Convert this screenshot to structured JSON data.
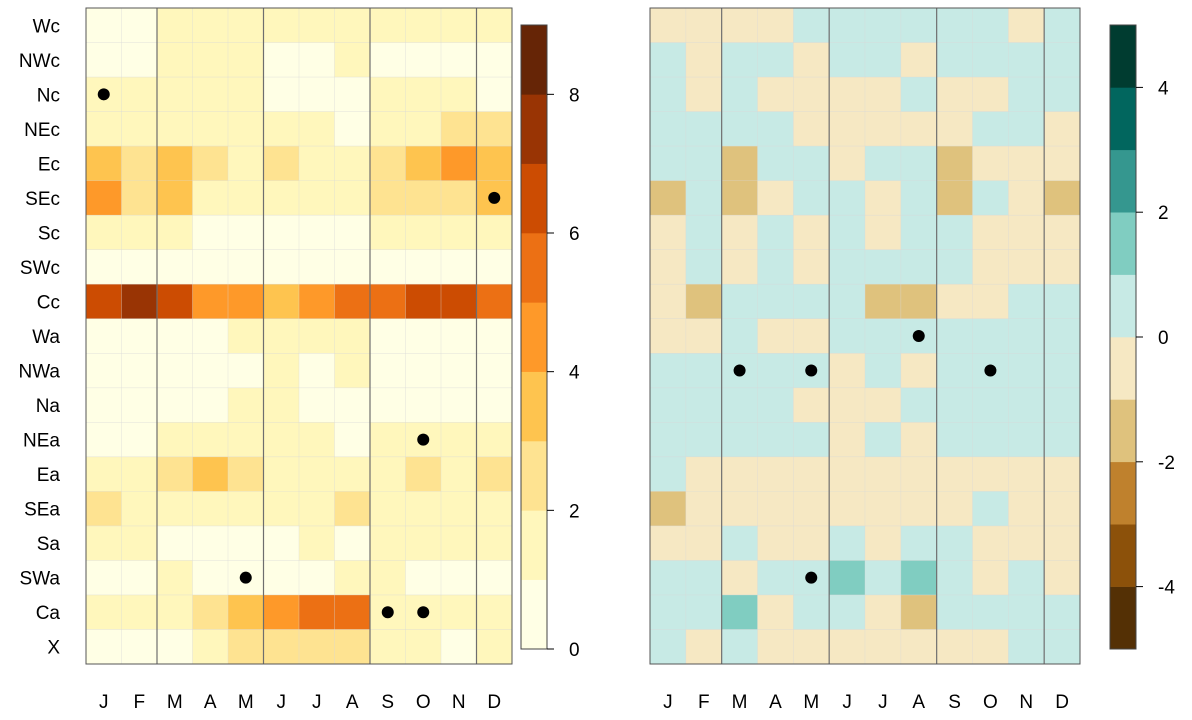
{
  "chart_data": [
    {
      "type": "heatmap",
      "title": "",
      "xlabel": "",
      "ylabel": "",
      "categories": [
        "J",
        "F",
        "M",
        "A",
        "M",
        "J",
        "J",
        "A",
        "S",
        "O",
        "N",
        "D"
      ],
      "rows": [
        "Wc",
        "NWc",
        "Nc",
        "NEc",
        "Ec",
        "SEc",
        "Sc",
        "SWc",
        "Cc",
        "Wa",
        "NWa",
        "Na",
        "NEa",
        "Ea",
        "SEa",
        "Sa",
        "SWa",
        "Ca",
        "X"
      ],
      "values": [
        [
          0.8,
          0.8,
          1.1,
          1.1,
          1.1,
          1.0,
          1.1,
          1.1,
          1.1,
          1.0,
          1.0,
          1.1
        ],
        [
          0.6,
          0.6,
          1.3,
          1.3,
          1.3,
          0.8,
          0.6,
          1.4,
          0.6,
          0.6,
          0.6,
          0.6
        ],
        [
          1.0,
          1.3,
          1.3,
          1.3,
          1.3,
          0.8,
          0.6,
          0.5,
          1.1,
          1.1,
          1.1,
          0.6
        ],
        [
          1.4,
          1.4,
          1.3,
          1.3,
          1.3,
          1.3,
          1.3,
          0.5,
          1.3,
          1.3,
          2.5,
          2.5
        ],
        [
          3.5,
          2.5,
          3.5,
          2.5,
          1.3,
          2.5,
          1.3,
          1.3,
          2.0,
          3.5,
          4.5,
          3.5
        ],
        [
          4.5,
          2.0,
          3.5,
          1.3,
          1.3,
          1.3,
          1.3,
          1.3,
          2.0,
          2.0,
          2.0,
          3.5
        ],
        [
          1.3,
          1.3,
          1.3,
          0.8,
          0.8,
          0.8,
          0.8,
          0.8,
          1.1,
          1.1,
          1.1,
          1.3
        ],
        [
          0.6,
          0.6,
          0.6,
          0.6,
          0.6,
          0.6,
          0.6,
          0.6,
          0.6,
          0.6,
          0.6,
          0.6
        ],
        [
          6.5,
          7.5,
          6.5,
          4.5,
          4.5,
          3.5,
          4.5,
          5.5,
          5.5,
          6.5,
          6.5,
          5.5
        ],
        [
          0.6,
          0.6,
          0.6,
          0.6,
          1.3,
          1.3,
          1.3,
          1.3,
          0.8,
          0.6,
          0.6,
          0.6
        ],
        [
          0.6,
          0.6,
          0.6,
          0.6,
          0.5,
          1.3,
          0.6,
          1.3,
          0.6,
          0.6,
          0.6,
          0.6
        ],
        [
          0.6,
          0.6,
          0.6,
          0.6,
          1.3,
          1.3,
          0.6,
          0.6,
          0.6,
          0.6,
          0.6,
          0.6
        ],
        [
          0.6,
          0.6,
          1.3,
          1.3,
          1.3,
          1.3,
          1.3,
          0.6,
          1.3,
          1.3,
          1.3,
          1.3
        ],
        [
          1.3,
          1.3,
          2.0,
          3.5,
          2.0,
          1.3,
          1.3,
          1.3,
          1.3,
          2.0,
          1.3,
          2.0
        ],
        [
          2.0,
          1.3,
          1.3,
          1.3,
          1.3,
          1.3,
          1.3,
          2.0,
          1.3,
          1.3,
          1.3,
          1.3
        ],
        [
          1.3,
          1.3,
          0.6,
          0.6,
          0.6,
          0.6,
          1.3,
          0.6,
          1.3,
          1.3,
          1.3,
          1.3
        ],
        [
          0.6,
          0.6,
          1.3,
          0.6,
          0.8,
          0.6,
          0.6,
          1.3,
          1.3,
          0.6,
          0.6,
          0.6
        ],
        [
          1.3,
          1.3,
          1.3,
          2.5,
          3.5,
          4.5,
          5.5,
          5.5,
          1.3,
          1.3,
          1.3,
          1.3
        ],
        [
          0.8,
          0.8,
          0.6,
          1.3,
          2.5,
          2.0,
          2.5,
          2.5,
          1.3,
          1.3,
          0.6,
          1.3
        ]
      ],
      "dots": [
        {
          "row": "Nc",
          "col": 0
        },
        {
          "row": "SEc",
          "col": 11
        },
        {
          "row": "NEa",
          "col": 9
        },
        {
          "row": "SWa",
          "col": 4
        },
        {
          "row": "Ca",
          "col": 8
        },
        {
          "row": "Ca",
          "col": 9
        }
      ],
      "colorbar": {
        "range": [
          0,
          9
        ],
        "ticks": [
          0,
          2,
          4,
          6,
          8
        ],
        "colors": [
          "#FFFFE5",
          "#FFF7BC",
          "#FEE391",
          "#FEC44F",
          "#FE9929",
          "#EC7014",
          "#CC4C02",
          "#993404",
          "#662506"
        ]
      }
    },
    {
      "type": "heatmap",
      "title": "",
      "xlabel": "",
      "ylabel": "",
      "categories": [
        "J",
        "F",
        "M",
        "A",
        "M",
        "J",
        "J",
        "A",
        "S",
        "O",
        "N",
        "D"
      ],
      "rows": [
        "Wc",
        "NWc",
        "Nc",
        "NEc",
        "Ec",
        "SEc",
        "Sc",
        "SWc",
        "Cc",
        "Wa",
        "NWa",
        "Na",
        "NEa",
        "Ea",
        "SEa",
        "Sa",
        "SWa",
        "Ca",
        "X"
      ],
      "values": [
        [
          -0.5,
          -0.5,
          -0.5,
          -0.5,
          0.5,
          0.5,
          0.5,
          0.5,
          0.5,
          0.5,
          -0.5,
          0.5
        ],
        [
          0.5,
          -0.5,
          0.5,
          0.5,
          -0.5,
          0.5,
          0.5,
          -0.5,
          0.5,
          0.5,
          0.5,
          0.5
        ],
        [
          0.5,
          -0.5,
          0.5,
          -0.5,
          -0.5,
          -0.5,
          -0.5,
          0.5,
          -0.5,
          -0.5,
          0.5,
          0.5
        ],
        [
          0.5,
          0.5,
          0.5,
          0.5,
          -0.5,
          -0.5,
          -0.5,
          -0.5,
          -0.5,
          0.5,
          0.5,
          -0.5
        ],
        [
          0.5,
          0.5,
          -1.5,
          0.5,
          0.5,
          -0.5,
          0.5,
          0.5,
          -1.5,
          -0.5,
          -0.5,
          -0.5
        ],
        [
          -1.5,
          0.5,
          -1.5,
          -0.5,
          0.5,
          0.5,
          -0.5,
          0.5,
          -1.5,
          0.5,
          -0.5,
          -1.5
        ],
        [
          -0.5,
          0.5,
          -0.5,
          0.5,
          -0.5,
          0.5,
          -0.5,
          0.5,
          0.5,
          -0.5,
          -0.5,
          -0.5
        ],
        [
          -0.5,
          0.5,
          -0.5,
          0.5,
          -0.5,
          0.5,
          0.5,
          0.5,
          0.5,
          -0.5,
          -0.5,
          -0.5
        ],
        [
          -0.5,
          -1.5,
          0.5,
          0.5,
          0.5,
          0.5,
          -1.5,
          -1.5,
          -0.5,
          -0.5,
          0.5,
          0.5
        ],
        [
          -0.5,
          -0.5,
          0.5,
          -0.5,
          -0.5,
          0.5,
          0.5,
          0.5,
          0.5,
          0.5,
          0.5,
          0.5
        ],
        [
          0.5,
          0.5,
          0.5,
          0.5,
          0.5,
          -0.5,
          0.5,
          -0.5,
          0.5,
          0.5,
          0.5,
          0.5
        ],
        [
          0.5,
          0.5,
          0.5,
          0.5,
          -0.5,
          -0.5,
          -0.5,
          0.5,
          0.5,
          0.5,
          0.5,
          0.5
        ],
        [
          0.5,
          0.5,
          0.5,
          0.5,
          0.5,
          -0.5,
          0.5,
          -0.5,
          0.5,
          0.5,
          0.5,
          0.5
        ],
        [
          0.5,
          -0.5,
          -0.5,
          -0.5,
          -0.5,
          -0.5,
          -0.5,
          -0.5,
          -0.5,
          -0.5,
          -0.5,
          -0.5
        ],
        [
          -1.5,
          -0.5,
          -0.5,
          -0.5,
          -0.5,
          -0.5,
          -0.5,
          -0.5,
          -0.5,
          0.5,
          -0.5,
          -0.5
        ],
        [
          -0.5,
          -0.5,
          0.5,
          -0.5,
          -0.5,
          0.5,
          -0.5,
          0.5,
          0.5,
          -0.5,
          -0.5,
          -0.5
        ],
        [
          0.5,
          0.5,
          -0.5,
          0.5,
          0.5,
          1.5,
          0.5,
          1.5,
          0.5,
          -0.5,
          0.5,
          -0.5
        ],
        [
          0.5,
          0.5,
          1.5,
          -0.5,
          0.5,
          0.5,
          -0.5,
          -1.5,
          0.5,
          0.5,
          0.5,
          0.5
        ],
        [
          0.5,
          -0.5,
          0.5,
          -0.5,
          -0.5,
          -0.5,
          -0.5,
          -0.5,
          -0.5,
          -0.5,
          0.5,
          0.5
        ]
      ],
      "dots": [
        {
          "row": "Wa",
          "col": 7
        },
        {
          "row": "NWa",
          "col": 2
        },
        {
          "row": "NWa",
          "col": 4
        },
        {
          "row": "NWa",
          "col": 9
        },
        {
          "row": "SWa",
          "col": 4
        }
      ],
      "colorbar": {
        "range": [
          -5,
          5
        ],
        "ticks": [
          -4,
          -2,
          0,
          2,
          4
        ],
        "colors": [
          "#543005",
          "#8C510A",
          "#BF812D",
          "#DFC27D",
          "#F6E8C3",
          "#C7EAE5",
          "#80CDC1",
          "#35978F",
          "#01665E",
          "#003C30"
        ]
      }
    }
  ]
}
